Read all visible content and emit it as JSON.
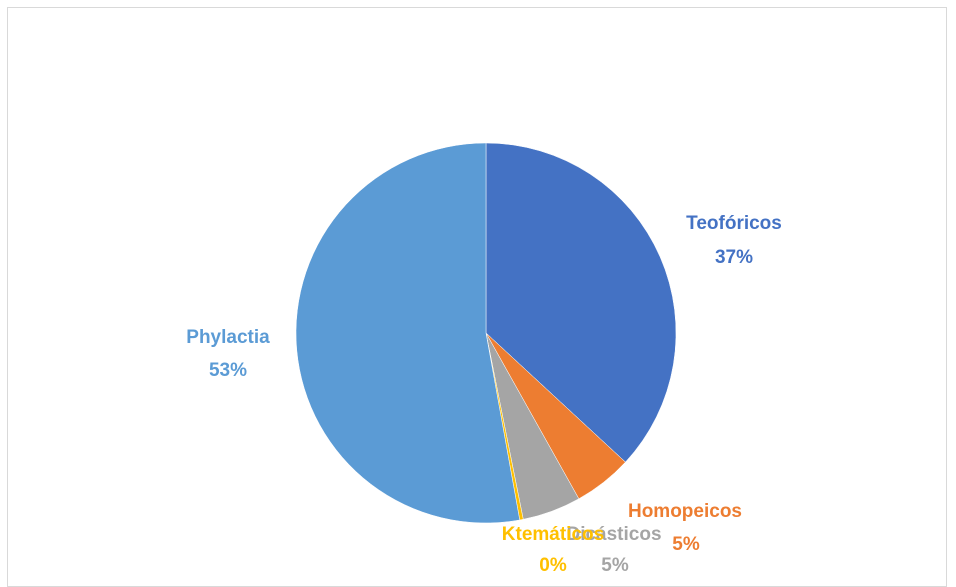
{
  "chart_data": {
    "type": "pie",
    "title": "",
    "start_angle_deg": 0,
    "direction": "clockwise",
    "slices": [
      {
        "label": "Teofóricos",
        "value": 37,
        "value_label": "37%",
        "color": "#4472C4"
      },
      {
        "label": "Homopeicos",
        "value": 5,
        "value_label": "5%",
        "color": "#ED7D31"
      },
      {
        "label": "Dicásticos",
        "value": 5,
        "value_label": "5%",
        "color": "#A5A5A5"
      },
      {
        "label": "Ktemáticos",
        "value": 0.3,
        "value_label": "0%",
        "color": "#FFC000"
      },
      {
        "label": "Phylactia",
        "value": 53,
        "value_label": "53%",
        "color": "#5B9BD5"
      }
    ]
  }
}
